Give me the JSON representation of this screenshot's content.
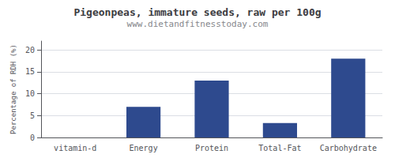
{
  "chart_data": {
    "type": "bar",
    "title": "Pigeonpeas, immature seeds, raw per 100g",
    "subtitle": "www.dietandfitnesstoday.com",
    "categories": [
      "vitamin-d",
      "Energy",
      "Protein",
      "Total-Fat",
      "Carbohydrate"
    ],
    "values": [
      0,
      7,
      13,
      3.3,
      18
    ],
    "color": "#2e4a8e",
    "ylabel": "Percentage of RDH (%)",
    "ylim": [
      0,
      22
    ],
    "yticks": [
      0,
      5,
      10,
      15,
      20
    ],
    "grid": true
  }
}
